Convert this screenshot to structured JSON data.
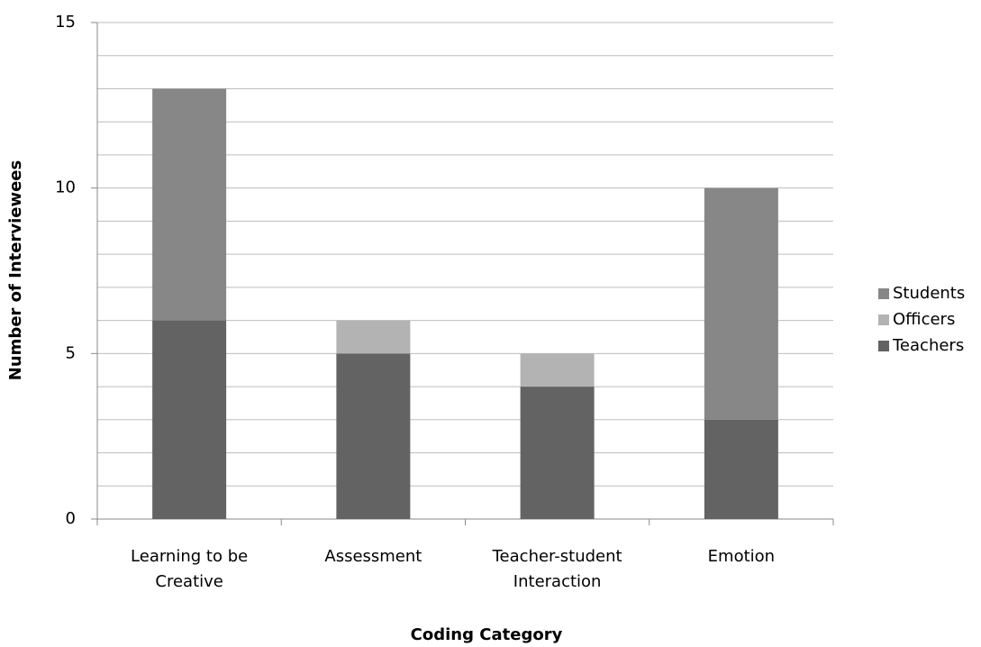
{
  "chart_data": {
    "type": "stacked_bar",
    "x_label": "Coding Category",
    "y_label": "Number of Interviewees",
    "categories": [
      "Learning to be Creative",
      "Assessment",
      "Teacher-student Interaction",
      "Emotion"
    ],
    "series": [
      {
        "name": "Teachers",
        "color": "#636363",
        "values": [
          6,
          5,
          4,
          3
        ]
      },
      {
        "name": "Officers",
        "color": "#b3b3b3",
        "values": [
          0,
          1,
          1,
          0
        ]
      },
      {
        "name": "Students",
        "color": "#878787",
        "values": [
          7,
          0,
          0,
          7
        ]
      }
    ],
    "ylim": [
      0,
      15
    ],
    "yticks": [
      0,
      5,
      10,
      15
    ],
    "yminorticks": [
      1,
      2,
      3,
      4,
      6,
      7,
      8,
      9,
      11,
      12,
      13,
      14
    ],
    "grid": true,
    "legend": "right"
  }
}
